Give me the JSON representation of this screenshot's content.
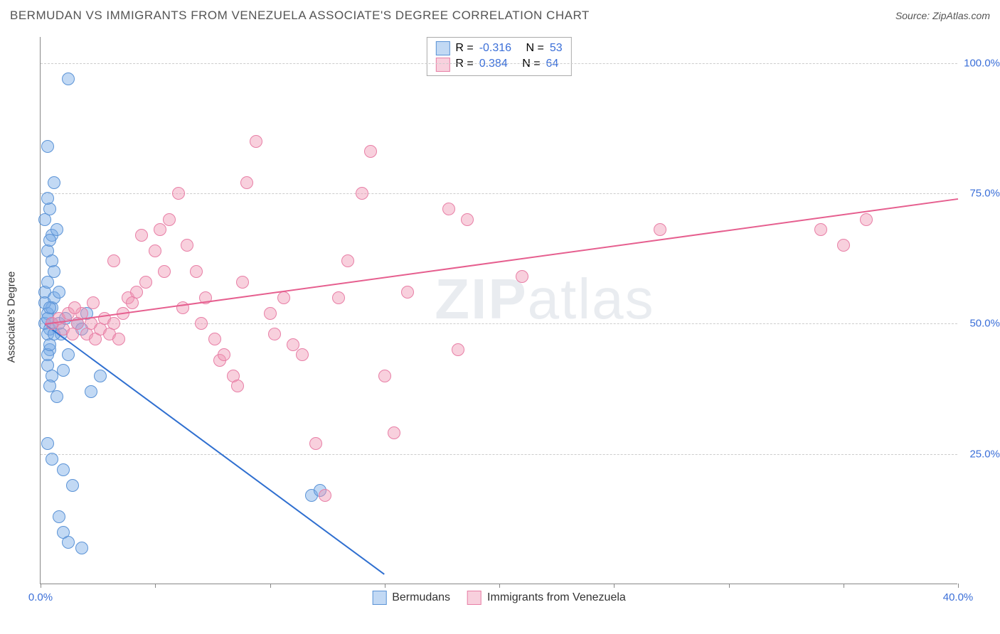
{
  "header": {
    "title": "BERMUDAN VS IMMIGRANTS FROM VENEZUELA ASSOCIATE'S DEGREE CORRELATION CHART",
    "source_prefix": "Source: ",
    "source_name": "ZipAtlas.com"
  },
  "ylabel": "Associate's Degree",
  "watermark": {
    "bold": "ZIP",
    "light": "atlas"
  },
  "axes": {
    "xlim": [
      0,
      40
    ],
    "ylim": [
      0,
      105
    ],
    "x_ticks": [
      0,
      5,
      10,
      15,
      20,
      25,
      30,
      35,
      40
    ],
    "x_tick_labels": {
      "0": "0.0%",
      "40": "40.0%"
    },
    "y_ticks": [
      25,
      50,
      75,
      100
    ],
    "y_tick_labels": {
      "25": "25.0%",
      "50": "50.0%",
      "75": "75.0%",
      "100": "100.0%"
    },
    "ytick_color": "#3b6fd8",
    "xtick_end_color": "#3b6fd8",
    "grid_color": "#cccccc"
  },
  "series": {
    "bermudans": {
      "label": "Bermudans",
      "fill": "rgba(120,170,230,0.45)",
      "stroke": "#5b93d6",
      "line_color": "#2f6fd0",
      "marker_radius": 9,
      "r_value": "-0.316",
      "n_value": "53",
      "trend": {
        "x1": 0.2,
        "y1": 50,
        "x2": 15,
        "y2": 2
      },
      "points": [
        [
          0.2,
          50
        ],
        [
          0.3,
          52
        ],
        [
          0.4,
          49
        ],
        [
          0.2,
          56
        ],
        [
          0.5,
          53
        ],
        [
          0.3,
          48
        ],
        [
          0.6,
          60
        ],
        [
          0.4,
          45
        ],
        [
          0.3,
          64
        ],
        [
          0.5,
          67
        ],
        [
          0.2,
          70
        ],
        [
          0.4,
          72
        ],
        [
          0.6,
          77
        ],
        [
          0.3,
          84
        ],
        [
          1.2,
          97
        ],
        [
          0.3,
          42
        ],
        [
          0.5,
          40
        ],
        [
          0.4,
          38
        ],
        [
          0.7,
          36
        ],
        [
          0.3,
          27
        ],
        [
          0.5,
          24
        ],
        [
          1.0,
          22
        ],
        [
          1.4,
          19
        ],
        [
          0.8,
          13
        ],
        [
          1.0,
          10
        ],
        [
          1.2,
          8
        ],
        [
          1.8,
          7
        ],
        [
          0.3,
          44
        ],
        [
          0.4,
          46
        ],
        [
          0.2,
          54
        ],
        [
          0.3,
          58
        ],
        [
          0.5,
          62
        ],
        [
          0.4,
          66
        ],
        [
          0.7,
          68
        ],
        [
          0.3,
          74
        ],
        [
          1.0,
          41
        ],
        [
          1.2,
          44
        ],
        [
          1.6,
          50
        ],
        [
          1.8,
          49
        ],
        [
          2.0,
          52
        ],
        [
          0.8,
          50
        ],
        [
          0.9,
          48
        ],
        [
          1.1,
          51
        ],
        [
          2.2,
          37
        ],
        [
          2.6,
          40
        ],
        [
          11.8,
          17
        ],
        [
          12.2,
          18
        ],
        [
          0.6,
          55
        ],
        [
          0.8,
          56
        ],
        [
          0.3,
          51
        ],
        [
          0.4,
          53
        ],
        [
          0.5,
          50
        ],
        [
          0.6,
          48
        ]
      ]
    },
    "venezuela": {
      "label": "Immigrants from Venezuela",
      "fill": "rgba(240,150,180,0.45)",
      "stroke": "#e87fa6",
      "line_color": "#e65f8f",
      "marker_radius": 9,
      "r_value": "0.384",
      "n_value": "64",
      "trend": {
        "x1": 0.2,
        "y1": 50,
        "x2": 40,
        "y2": 74
      },
      "points": [
        [
          0.5,
          50
        ],
        [
          0.8,
          51
        ],
        [
          1.0,
          49
        ],
        [
          1.2,
          52
        ],
        [
          1.4,
          48
        ],
        [
          1.6,
          50
        ],
        [
          1.8,
          52
        ],
        [
          2.0,
          48
        ],
        [
          2.2,
          50
        ],
        [
          2.4,
          47
        ],
        [
          2.6,
          49
        ],
        [
          2.8,
          51
        ],
        [
          3.0,
          48
        ],
        [
          3.2,
          50
        ],
        [
          3.4,
          47
        ],
        [
          3.6,
          52
        ],
        [
          3.8,
          55
        ],
        [
          4.0,
          54
        ],
        [
          4.2,
          56
        ],
        [
          4.6,
          58
        ],
        [
          5.0,
          64
        ],
        [
          5.2,
          68
        ],
        [
          5.6,
          70
        ],
        [
          6.0,
          75
        ],
        [
          6.4,
          65
        ],
        [
          6.8,
          60
        ],
        [
          7.2,
          55
        ],
        [
          7.6,
          47
        ],
        [
          7.8,
          43
        ],
        [
          8.0,
          44
        ],
        [
          8.4,
          40
        ],
        [
          8.6,
          38
        ],
        [
          9.0,
          77
        ],
        [
          9.4,
          85
        ],
        [
          10.0,
          52
        ],
        [
          10.2,
          48
        ],
        [
          10.6,
          55
        ],
        [
          11.0,
          46
        ],
        [
          11.4,
          44
        ],
        [
          12.0,
          27
        ],
        [
          12.4,
          17
        ],
        [
          13.0,
          55
        ],
        [
          13.4,
          62
        ],
        [
          14.0,
          75
        ],
        [
          14.4,
          83
        ],
        [
          15.0,
          40
        ],
        [
          15.4,
          29
        ],
        [
          16.0,
          56
        ],
        [
          17.8,
          72
        ],
        [
          18.2,
          45
        ],
        [
          18.6,
          70
        ],
        [
          21.0,
          59
        ],
        [
          27.0,
          68
        ],
        [
          34.0,
          68
        ],
        [
          35.0,
          65
        ],
        [
          36.0,
          70
        ],
        [
          3.2,
          62
        ],
        [
          4.4,
          67
        ],
        [
          5.4,
          60
        ],
        [
          6.2,
          53
        ],
        [
          7.0,
          50
        ],
        [
          8.8,
          58
        ],
        [
          1.5,
          53
        ],
        [
          2.3,
          54
        ]
      ]
    }
  },
  "stats_box": {
    "r_label": "R =",
    "n_label": "N =",
    "value_color": "#3b6fd8"
  },
  "legend": {
    "series_order": [
      "bermudans",
      "venezuela"
    ]
  }
}
